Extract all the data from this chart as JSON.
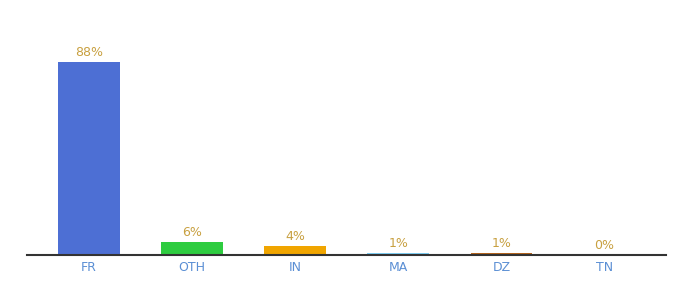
{
  "categories": [
    "FR",
    "OTH",
    "IN",
    "MA",
    "DZ",
    "TN"
  ],
  "values": [
    88,
    6,
    4,
    1,
    1,
    0
  ],
  "labels": [
    "88%",
    "6%",
    "4%",
    "1%",
    "1%",
    "0%"
  ],
  "bar_colors": [
    "#4d6fd4",
    "#2ecc40",
    "#f0a500",
    "#7ecef4",
    "#b5651d",
    "#7ecef4"
  ],
  "background_color": "#ffffff",
  "label_color": "#c8a040",
  "axis_label_color": "#5b8fd4",
  "ylim": [
    0,
    100
  ]
}
